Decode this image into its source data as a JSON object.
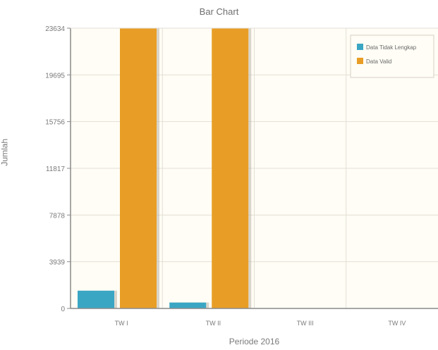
{
  "chart_data": {
    "type": "bar",
    "title": "Bar Chart",
    "xlabel": "Periode 2016",
    "ylabel": "Jumlah",
    "categories": [
      "TW I",
      "TW II",
      "TW III",
      "TW IV"
    ],
    "series": [
      {
        "name": "Data Tidak Lengkap",
        "values": [
          1500,
          500,
          0,
          0
        ],
        "color": "#3aa6c4"
      },
      {
        "name": "Data Valid",
        "values": [
          23634,
          23634,
          0,
          0
        ],
        "color": "#e89e26"
      }
    ],
    "yticks": [
      0,
      3939,
      7878,
      11817,
      15756,
      19695,
      23634
    ],
    "ytick_labels": [
      "0",
      "3939",
      "7878",
      "11817",
      "15756",
      "19695",
      "23634"
    ],
    "ylim": [
      0,
      23634
    ],
    "grid": true,
    "legend_position": "top-right",
    "colors": {
      "plot_background": "#fffdf5",
      "grid": "#e2dfd6",
      "axis": "#8a8a8a"
    }
  }
}
